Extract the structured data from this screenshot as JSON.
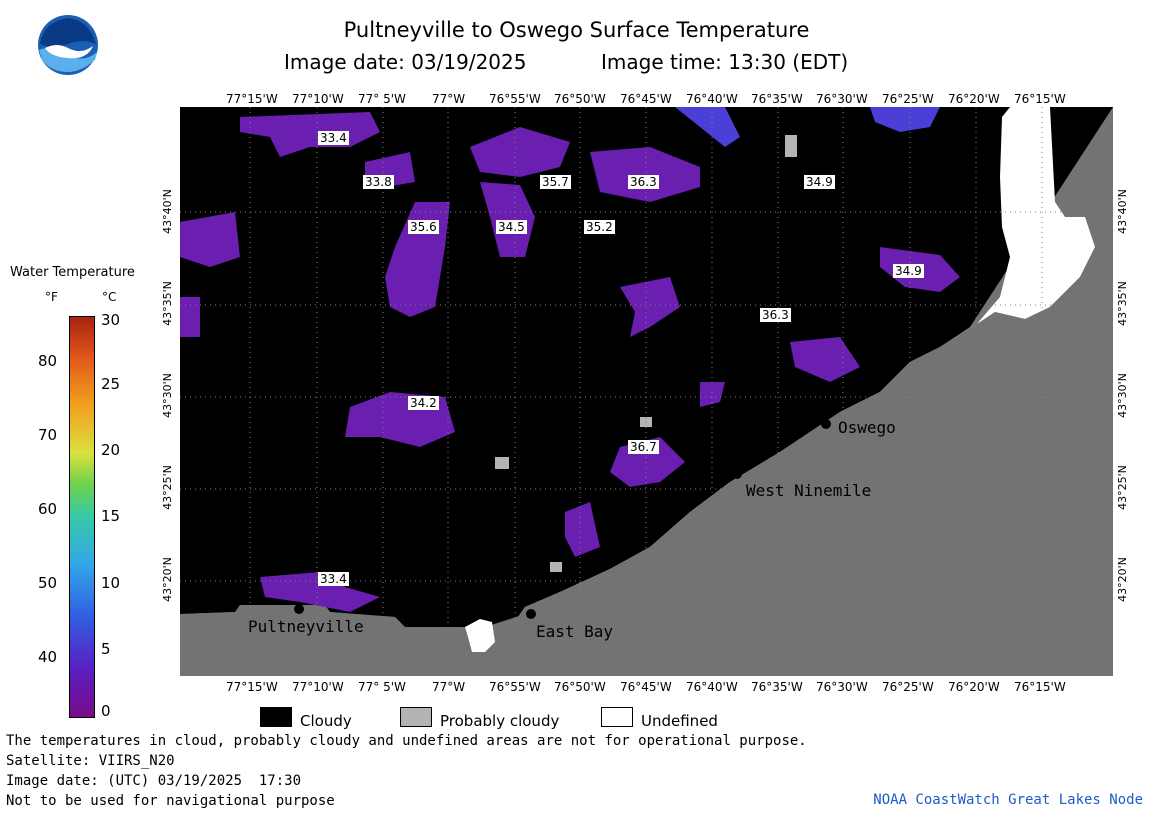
{
  "title": "Pultneyville to Oswego Surface Temperature",
  "image_date_label": "Image date: 03/19/2025",
  "image_time_label": "Image time: 13:30 (EDT)",
  "colors": {
    "cloudy": "#000000",
    "probably_cloudy": "#b4b4b4",
    "undefined": "#ffffff",
    "land": "#737373",
    "water_low": "#6a1fb0"
  },
  "icons": {
    "logo": "noaa-logo-icon"
  },
  "longitude_ticks": [
    "77°15'W",
    "77°10'W",
    "77° 5'W",
    "77°W",
    "76°55'W",
    "76°50'W",
    "76°45'W",
    "76°40'W",
    "76°35'W",
    "76°30'W",
    "76°25'W",
    "76°20'W",
    "76°15'W"
  ],
  "latitude_ticks": [
    "43°40'N",
    "43°35'N",
    "43°30'N",
    "43°25'N",
    "43°20'N"
  ],
  "legend": {
    "title": "Water Temperature",
    "unit_f": "°F",
    "unit_c": "°C",
    "f_ticks": [
      "80",
      "70",
      "60",
      "50",
      "40"
    ],
    "c_ticks": [
      "30",
      "25",
      "20",
      "15",
      "10",
      "5",
      "0"
    ]
  },
  "key": {
    "cloudy": "Cloudy",
    "probably_cloudy": "Probably cloudy",
    "undefined": "Undefined"
  },
  "places": {
    "oswego": "Oswego",
    "west_ninemile": "West Ninemile",
    "pultneyville": "Pultneyville",
    "east_bay": "East Bay"
  },
  "temp_labels": [
    "33.4",
    "33.8",
    "35.7",
    "36.3",
    "34.9",
    "35.6",
    "34.5",
    "35.2",
    "34.9",
    "36.3",
    "34.2",
    "36.7",
    "33.4"
  ],
  "footer": {
    "line1": "The temperatures in cloud, probably cloudy and undefined areas are not for operational purpose.",
    "line2": "Satellite: VIIRS_N20",
    "line3": "Image date: (UTC) 03/19/2025  17:30",
    "line4": "Not to be used for navigational purpose",
    "credit": "NOAA CoastWatch Great Lakes Node"
  }
}
